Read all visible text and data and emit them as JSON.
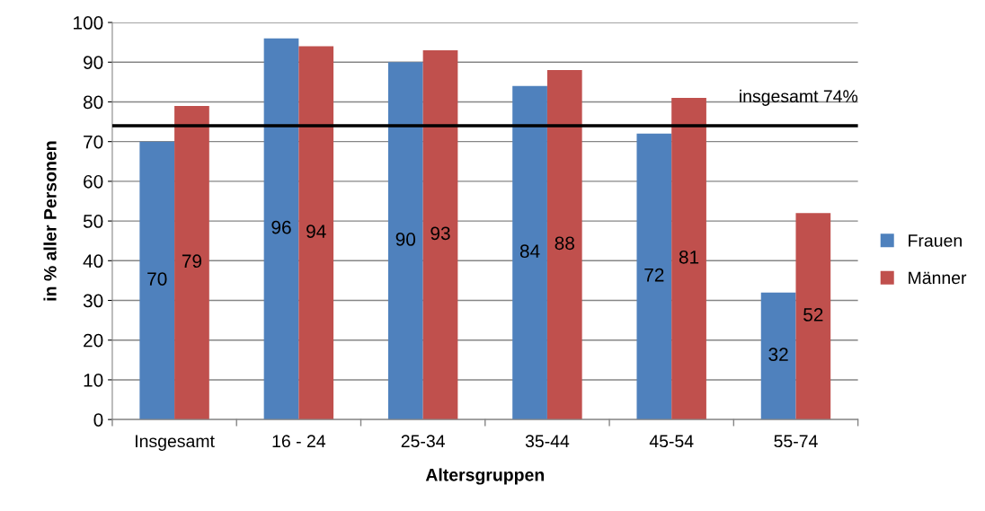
{
  "chart_data": {
    "type": "bar",
    "xlabel": "Altersgruppen",
    "ylabel": "in % aller Personen",
    "categories": [
      "Insgesamt",
      "16 - 24",
      "25-34",
      "35-44",
      "45-54",
      "55-74"
    ],
    "series": [
      {
        "name": "Frauen",
        "color": "#4f81bd",
        "values": [
          70,
          96,
          90,
          84,
          72,
          32
        ]
      },
      {
        "name": "Männer",
        "color": "#c0504d",
        "values": [
          79,
          94,
          93,
          88,
          81,
          52
        ]
      }
    ],
    "ylim": [
      0,
      100
    ],
    "yticks": [
      0,
      10,
      20,
      30,
      40,
      50,
      60,
      70,
      80,
      90,
      100
    ],
    "ref_lines": [
      {
        "axis": "y",
        "value": 74,
        "label": "insgesamt 74%",
        "color": "#000000",
        "line_style": "solid"
      }
    ],
    "data_labels": true,
    "grid": "y",
    "legend": "right"
  }
}
